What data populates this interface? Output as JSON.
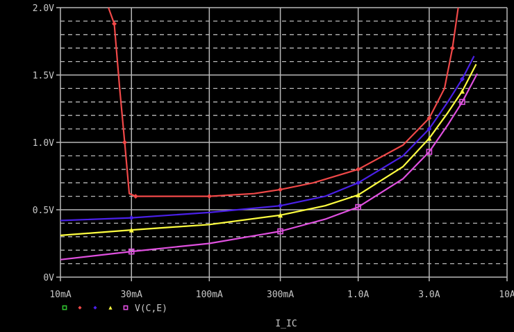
{
  "chart_data": {
    "type": "line",
    "xlabel": "I_IC",
    "ylabel": "",
    "x_scale": "log",
    "xlim": [
      0.01,
      10
    ],
    "ylim": [
      0,
      2.0
    ],
    "grid": true,
    "x_ticks": [
      0.01,
      0.03,
      0.1,
      0.3,
      1.0,
      3.0,
      10
    ],
    "x_tick_labels": [
      "10mA",
      "30mA",
      "100mA",
      "300mA",
      "1.0A",
      "3.0A",
      "10A"
    ],
    "y_ticks": [
      0,
      0.5,
      1.0,
      1.5,
      2.0
    ],
    "y_tick_labels": [
      "0V",
      "0.5V",
      "1.0V",
      "1.5V",
      "2.0V"
    ],
    "legend": {
      "placement": "bottom-left",
      "label": "V(C,E)",
      "markers": [
        {
          "shape": "square",
          "color": "#30c030"
        },
        {
          "shape": "diamond",
          "color": "#f04848"
        },
        {
          "shape": "diamond",
          "color": "#4a20e8"
        },
        {
          "shape": "triangle",
          "color": "#ffff40"
        },
        {
          "shape": "square",
          "color": "#e050e0"
        }
      ]
    },
    "series": [
      {
        "color": "#f04848",
        "marker": "diamond",
        "x": [
          0.021,
          0.023,
          0.025,
          0.027,
          0.029,
          0.032,
          0.05,
          0.1,
          0.2,
          0.3,
          0.5,
          1.0,
          2.0,
          3.0,
          3.8,
          4.3,
          4.7
        ],
        "y": [
          2.0,
          1.88,
          1.4,
          1.0,
          0.62,
          0.6,
          0.6,
          0.6,
          0.62,
          0.65,
          0.7,
          0.8,
          0.98,
          1.18,
          1.4,
          1.7,
          2.0
        ]
      },
      {
        "color": "#4a20e8",
        "marker": "diamond",
        "x": [
          0.01,
          0.03,
          0.1,
          0.3,
          0.6,
          1.0,
          2.0,
          3.0,
          4.0,
          5.0,
          6.0
        ],
        "y": [
          0.42,
          0.44,
          0.48,
          0.53,
          0.6,
          0.7,
          0.9,
          1.1,
          1.3,
          1.47,
          1.64
        ]
      },
      {
        "color": "#ffff40",
        "marker": "triangle",
        "x": [
          0.01,
          0.03,
          0.1,
          0.3,
          0.6,
          1.0,
          2.0,
          3.0,
          4.0,
          5.0,
          6.2
        ],
        "y": [
          0.31,
          0.35,
          0.39,
          0.46,
          0.53,
          0.61,
          0.82,
          1.03,
          1.22,
          1.38,
          1.58
        ]
      },
      {
        "color": "#e050e0",
        "marker": "square",
        "x": [
          0.01,
          0.03,
          0.1,
          0.3,
          0.6,
          1.0,
          2.0,
          3.0,
          4.0,
          5.0,
          6.3
        ],
        "y": [
          0.13,
          0.19,
          0.25,
          0.34,
          0.43,
          0.52,
          0.73,
          0.93,
          1.13,
          1.3,
          1.51
        ]
      }
    ]
  }
}
